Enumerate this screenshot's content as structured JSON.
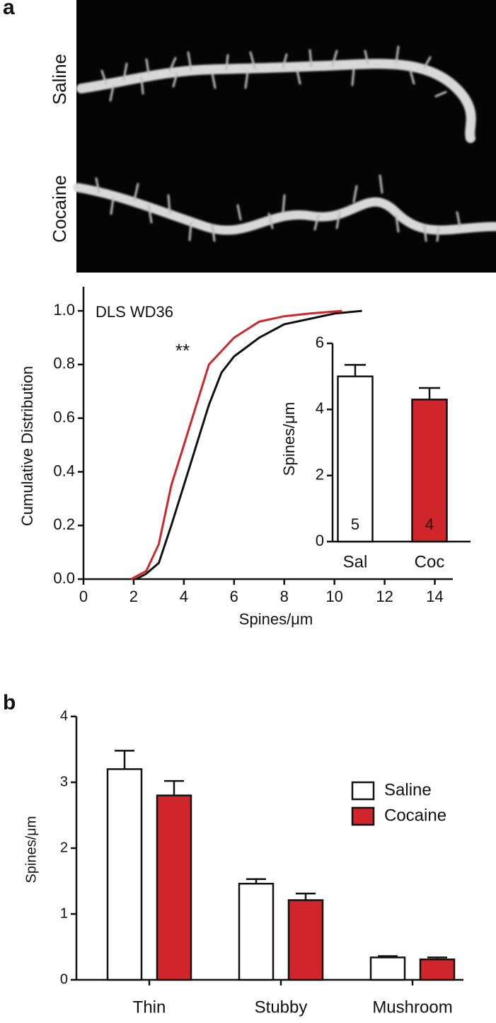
{
  "panel_labels": [
    "a",
    "b"
  ],
  "image": {
    "labels": [
      "Saline",
      "Cocaine"
    ]
  },
  "chart_data": [
    {
      "type": "line",
      "annotations": [
        "DLS WD36",
        "**"
      ],
      "x_label": "Spines/μm",
      "y_label": "Cumulative Distribution",
      "xlim": [
        0,
        15
      ],
      "xticks": [
        0,
        2,
        4,
        6,
        8,
        10,
        12,
        14
      ],
      "ylim": [
        0,
        1.09
      ],
      "yticks": [
        {
          "value": 0,
          "label": "0.0"
        },
        0.2,
        0.4,
        0.6,
        0.8,
        {
          "value": 1,
          "label": "1.0"
        }
      ],
      "series": [
        {
          "color": "#111111",
          "x": [
            2.1,
            2.5,
            3,
            3.5,
            4,
            4.5,
            5,
            5.5,
            6,
            7,
            8,
            9,
            10,
            11.1
          ],
          "values": [
            0,
            0.02,
            0.06,
            0.2,
            0.35,
            0.5,
            0.65,
            0.77,
            0.83,
            0.9,
            0.95,
            0.97,
            0.99,
            1.0
          ]
        },
        {
          "color": "#d0262b",
          "x": [
            1.9,
            2.5,
            3,
            3.5,
            4,
            4.5,
            5,
            5.5,
            6,
            7,
            8,
            9,
            10.3
          ],
          "values": [
            0,
            0.03,
            0.13,
            0.35,
            0.5,
            0.65,
            0.8,
            0.85,
            0.9,
            0.96,
            0.98,
            0.99,
            1.0
          ]
        }
      ]
    },
    {
      "type": "bar",
      "y_label": "Spines/μm",
      "categories": [
        "Sal",
        "Coc"
      ],
      "values": [
        5.0,
        4.3
      ],
      "errors": [
        0.35,
        0.35
      ],
      "n_labels": [
        "5",
        "4"
      ],
      "colors": [
        "#ffffff",
        "#d0262b"
      ],
      "ylim": [
        0,
        6
      ],
      "yticks": [
        0,
        2,
        4,
        6
      ]
    },
    {
      "type": "grouped_bar",
      "y_label": "Spines/μm",
      "categories": [
        "Thin",
        "Stubby",
        "Mushroom"
      ],
      "legend": "upper right",
      "ylim": [
        0,
        4
      ],
      "yticks": [
        0,
        1,
        2,
        3,
        4
      ],
      "series": [
        {
          "name": "Saline",
          "color": "#ffffff",
          "values": [
            3.2,
            1.46,
            0.34
          ],
          "errors": [
            0.28,
            0.07,
            0.02
          ]
        },
        {
          "name": "Cocaine",
          "color": "#d0262b",
          "values": [
            2.8,
            1.21,
            0.31
          ],
          "errors": [
            0.22,
            0.1,
            0.03
          ]
        }
      ]
    }
  ]
}
